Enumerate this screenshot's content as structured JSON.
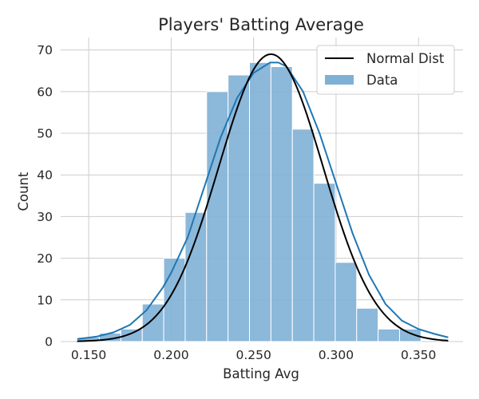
{
  "chart_data": {
    "type": "bar",
    "title": "Players' Batting Average",
    "xlabel": "Batting Avg",
    "ylabel": "Count",
    "xlim": [
      0.133,
      0.377
    ],
    "ylim": [
      0,
      73
    ],
    "x_ticks": [
      0.15,
      0.2,
      0.25,
      0.3,
      0.35
    ],
    "x_tick_labels": [
      "0.150",
      "0.200",
      "0.250",
      "0.300",
      "0.350"
    ],
    "y_ticks": [
      0,
      10,
      20,
      30,
      40,
      50,
      60,
      70
    ],
    "y_tick_labels": [
      "0",
      "10",
      "20",
      "30",
      "40",
      "50",
      "60",
      "70"
    ],
    "grid": true,
    "legend_position": "top-right",
    "bins": [
      {
        "x0": 0.1435,
        "x1": 0.1565,
        "count": 1
      },
      {
        "x0": 0.1565,
        "x1": 0.1695,
        "count": 2
      },
      {
        "x0": 0.1695,
        "x1": 0.1825,
        "count": 3
      },
      {
        "x0": 0.1825,
        "x1": 0.1955,
        "count": 9
      },
      {
        "x0": 0.1955,
        "x1": 0.2085,
        "count": 20
      },
      {
        "x0": 0.2085,
        "x1": 0.2215,
        "count": 31
      },
      {
        "x0": 0.2215,
        "x1": 0.2345,
        "count": 60
      },
      {
        "x0": 0.2345,
        "x1": 0.2475,
        "count": 64
      },
      {
        "x0": 0.2475,
        "x1": 0.2605,
        "count": 67
      },
      {
        "x0": 0.2605,
        "x1": 0.2735,
        "count": 66
      },
      {
        "x0": 0.2735,
        "x1": 0.2865,
        "count": 51
      },
      {
        "x0": 0.2865,
        "x1": 0.2995,
        "count": 38
      },
      {
        "x0": 0.2995,
        "x1": 0.3125,
        "count": 19
      },
      {
        "x0": 0.3125,
        "x1": 0.3255,
        "count": 8
      },
      {
        "x0": 0.3255,
        "x1": 0.3385,
        "count": 3
      },
      {
        "x0": 0.3385,
        "x1": 0.3515,
        "count": 3
      }
    ],
    "series": [
      {
        "name": "Normal Dist",
        "type": "line",
        "color": "#000000",
        "mean": 0.2605,
        "sd": 0.0317,
        "peak": 69,
        "x_range": [
          0.143,
          0.368
        ]
      },
      {
        "name": "Data",
        "type": "bar",
        "color": "#7fb0d6",
        "kde_color": "#1f77b4",
        "kde_points": [
          [
            0.143,
            0.6
          ],
          [
            0.155,
            1.2
          ],
          [
            0.165,
            2.2
          ],
          [
            0.175,
            4
          ],
          [
            0.185,
            7.5
          ],
          [
            0.195,
            13
          ],
          [
            0.2,
            16.5
          ],
          [
            0.21,
            25
          ],
          [
            0.22,
            37
          ],
          [
            0.23,
            49
          ],
          [
            0.24,
            58.5
          ],
          [
            0.25,
            64.5
          ],
          [
            0.26,
            67
          ],
          [
            0.265,
            67
          ],
          [
            0.27,
            66
          ],
          [
            0.28,
            60
          ],
          [
            0.29,
            50
          ],
          [
            0.3,
            38
          ],
          [
            0.31,
            26
          ],
          [
            0.32,
            16
          ],
          [
            0.33,
            9
          ],
          [
            0.34,
            5
          ],
          [
            0.35,
            3
          ],
          [
            0.36,
            1.8
          ],
          [
            0.368,
            1
          ]
        ]
      }
    ]
  }
}
